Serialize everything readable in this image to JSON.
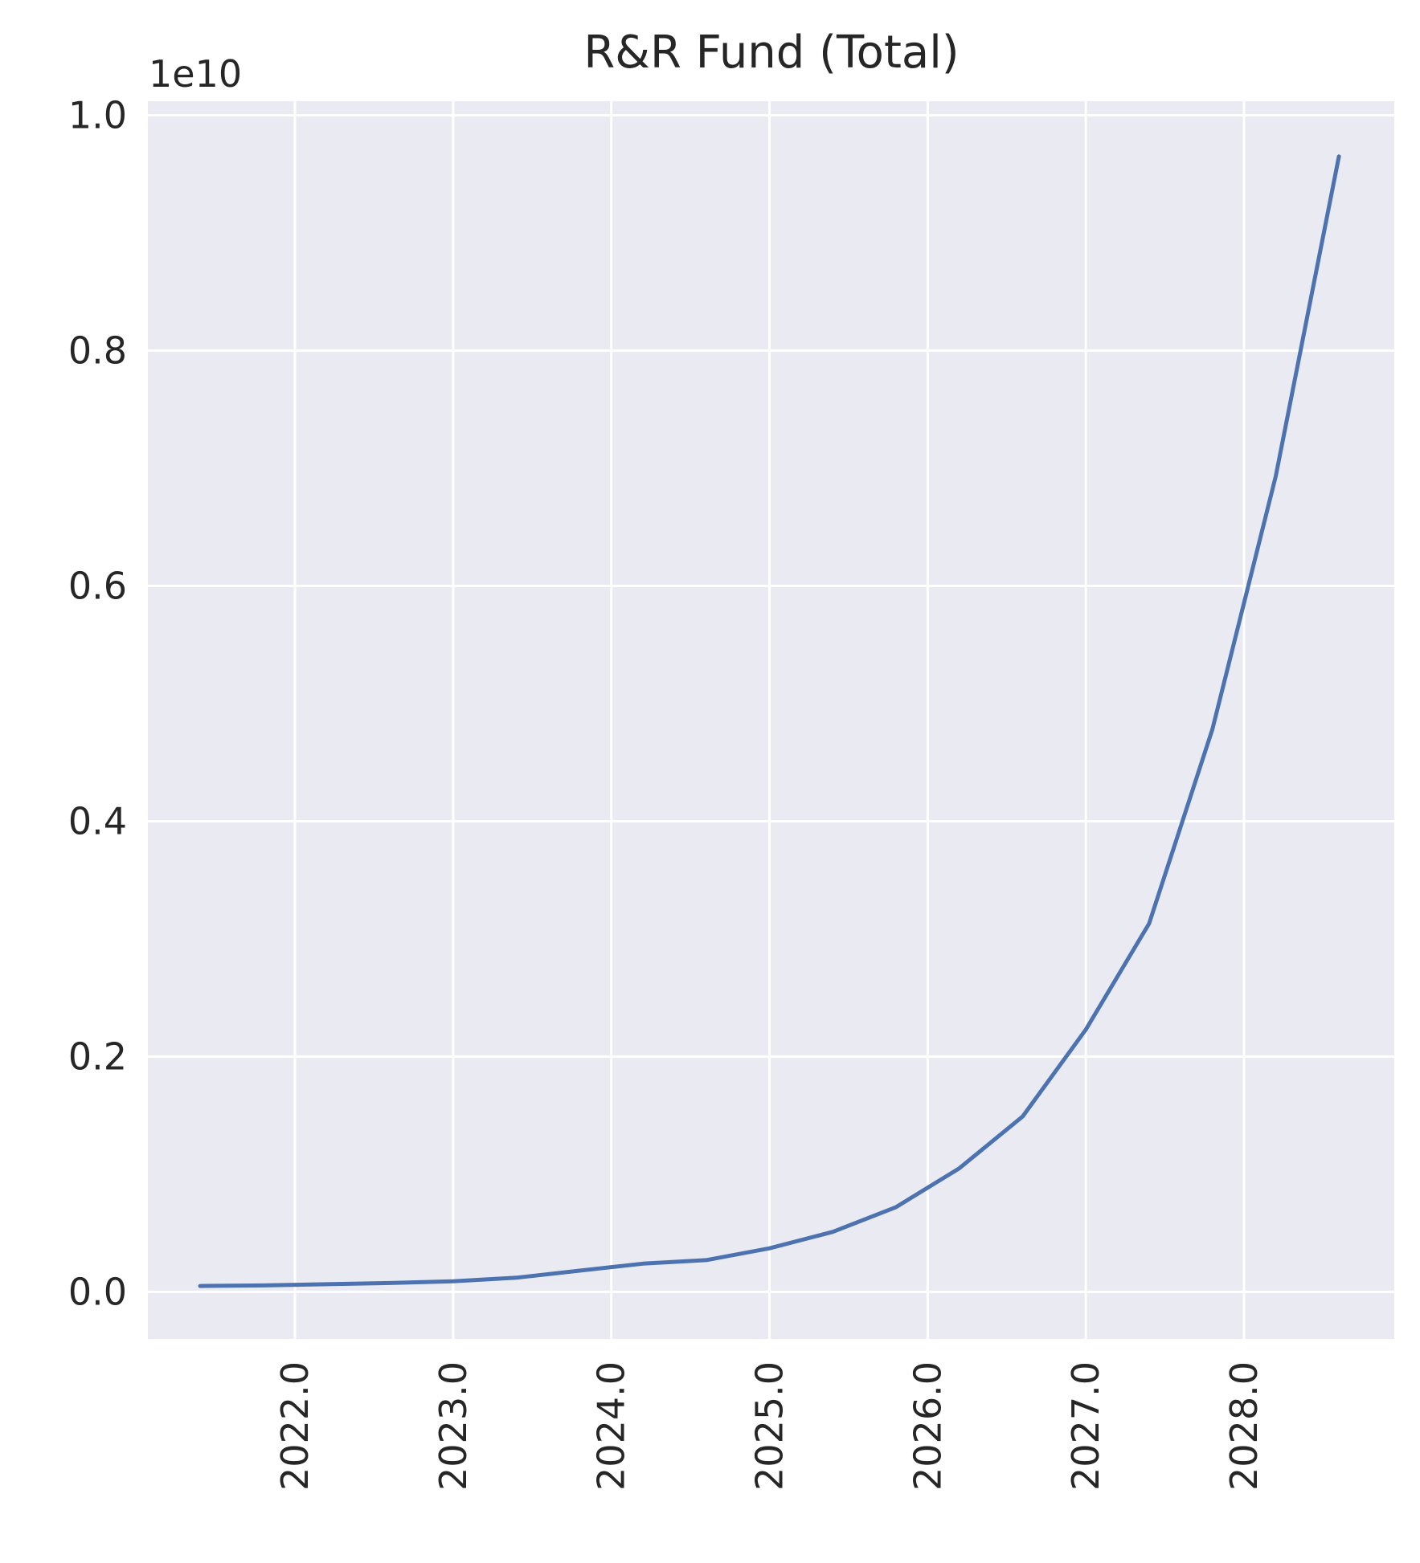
{
  "chart_data": {
    "type": "line",
    "title": "R&R Fund (Total)",
    "xlabel": "",
    "ylabel": "",
    "y_offset_label": "1e10",
    "grid": true,
    "x_ticks": [
      2022.0,
      2023.0,
      2024.0,
      2025.0,
      2026.0,
      2027.0,
      2028.0
    ],
    "x_tick_labels": [
      "2022.0",
      "2023.0",
      "2024.0",
      "2025.0",
      "2026.0",
      "2027.0",
      "2028.0"
    ],
    "y_ticks": [
      0.0,
      0.2,
      0.4,
      0.6,
      0.8,
      1.0
    ],
    "y_tick_labels": [
      "0.0",
      "0.2",
      "0.4",
      "0.6",
      "0.8",
      "1.0"
    ],
    "xlim": [
      2021.07,
      2028.95
    ],
    "ylim": [
      -0.04,
      1.012
    ],
    "series": [
      {
        "color": "#4c72b0",
        "x": [
          2021.4,
          2021.8,
          2022.2,
          2022.6,
          2023.0,
          2023.4,
          2023.8,
          2024.2,
          2024.6,
          2025.0,
          2025.4,
          2025.8,
          2026.2,
          2026.6,
          2027.0,
          2027.4,
          2027.8,
          2028.2,
          2028.6
        ],
        "y": [
          0.005,
          0.0055,
          0.0065,
          0.0075,
          0.009,
          0.012,
          0.018,
          0.024,
          0.027,
          0.037,
          0.051,
          0.072,
          0.105,
          0.149,
          0.223,
          0.313,
          0.478,
          0.693,
          0.965
        ]
      }
    ]
  }
}
